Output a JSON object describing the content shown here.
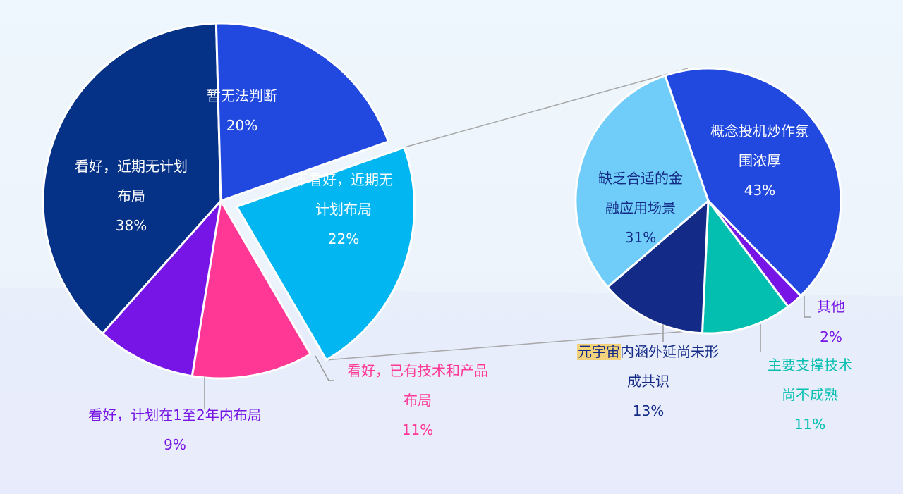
{
  "chart_data": [
    {
      "type": "pie",
      "slices": [
        {
          "label_lines": [
            "看好，近期无计划",
            "布局"
          ],
          "value": 38,
          "value_label": "38%",
          "color": "#053186",
          "text_color": "#ffffff"
        },
        {
          "label_lines": [
            "暂无法判断"
          ],
          "value": 20,
          "value_label": "20%",
          "color": "#2149e0",
          "text_color": "#ffffff"
        },
        {
          "label_lines": [
            "不看好，近期无",
            "计划布局"
          ],
          "value": 22,
          "value_label": "22%",
          "color": "#02b6f2",
          "text_color": "#ffffff",
          "exploded": true
        },
        {
          "label_lines": [
            "看好，已有技术和产品",
            "布局"
          ],
          "value": 11,
          "value_label": "11%",
          "color": "#ff3795",
          "text_color": "#ff3795"
        },
        {
          "label_lines": [
            "看好，计划在1至2年内布局"
          ],
          "value": 9,
          "value_label": "9%",
          "color": "#7615e6",
          "text_color": "#7615e6"
        }
      ]
    },
    {
      "type": "pie",
      "slices": [
        {
          "label_lines": [
            "概念投机炒作氛",
            "围浓厚"
          ],
          "value": 43,
          "value_label": "43%",
          "color": "#2149e0",
          "text_color": "#ffffff"
        },
        {
          "label_lines": [
            "其他"
          ],
          "value": 2,
          "value_label": "2%",
          "color": "#7615e6",
          "text_color": "#7615e6"
        },
        {
          "label_lines": [
            "主要支撑技术",
            "尚不成熟"
          ],
          "value": 11,
          "value_label": "11%",
          "color": "#03bfb0",
          "text_color": "#03bfb0"
        },
        {
          "label_lines": [
            "内涵外延尚未形",
            "成共识"
          ],
          "label_prefix": "元宇宙",
          "value": 13,
          "value_label": "13%",
          "color": "#132b86",
          "text_color": "#132b86"
        },
        {
          "label_lines": [
            "缺乏合适的金",
            "融应用场景"
          ],
          "value": 31,
          "value_label": "31%",
          "color": "#70cdfa",
          "text_color": "#132b86"
        }
      ]
    }
  ]
}
